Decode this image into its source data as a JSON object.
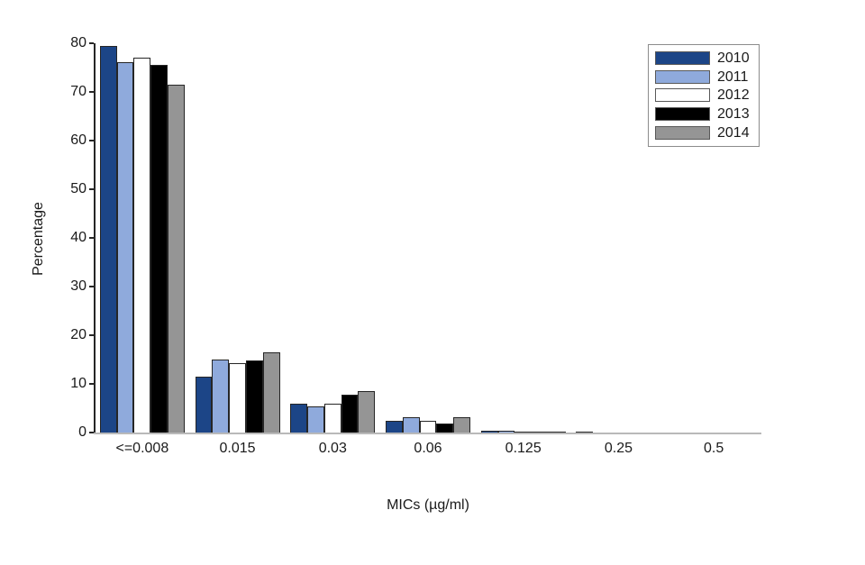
{
  "chart_data": {
    "type": "bar",
    "title": "",
    "xlabel": "MICs (µg/ml)",
    "ylabel": "Percentage",
    "categories": [
      "<=0.008",
      "0.015",
      "0.03",
      "0.06",
      "0.125",
      "0.25",
      "0.5"
    ],
    "series": [
      {
        "name": "2010",
        "color": "#1c4587",
        "values": [
          79.5,
          11.5,
          6.0,
          2.4,
          0.4,
          0.25,
          0
        ]
      },
      {
        "name": "2011",
        "color": "#8faadc",
        "values": [
          76.1,
          15.0,
          5.4,
          3.1,
          0.45,
          0,
          0
        ]
      },
      {
        "name": "2012",
        "color": "#ffffff",
        "values": [
          77.1,
          14.2,
          5.9,
          2.5,
          0.25,
          0,
          0
        ]
      },
      {
        "name": "2013",
        "color": "#000000",
        "values": [
          75.5,
          14.8,
          7.8,
          1.9,
          0.2,
          0,
          0
        ]
      },
      {
        "name": "2014",
        "color": "#959595",
        "values": [
          71.5,
          16.4,
          8.6,
          3.2,
          0.25,
          0,
          0
        ]
      }
    ],
    "y_ticks": [
      0,
      10,
      20,
      30,
      40,
      50,
      60,
      70,
      80
    ],
    "ylim": [
      0,
      80
    ],
    "grid": false,
    "legend_position": "top-right",
    "colors": {
      "y_axis": "#262626",
      "x_axis": "#b9b9b9",
      "bar_outline": "#262626",
      "legend_border": "#8c8c8c",
      "text": "#1a1a1a"
    }
  }
}
